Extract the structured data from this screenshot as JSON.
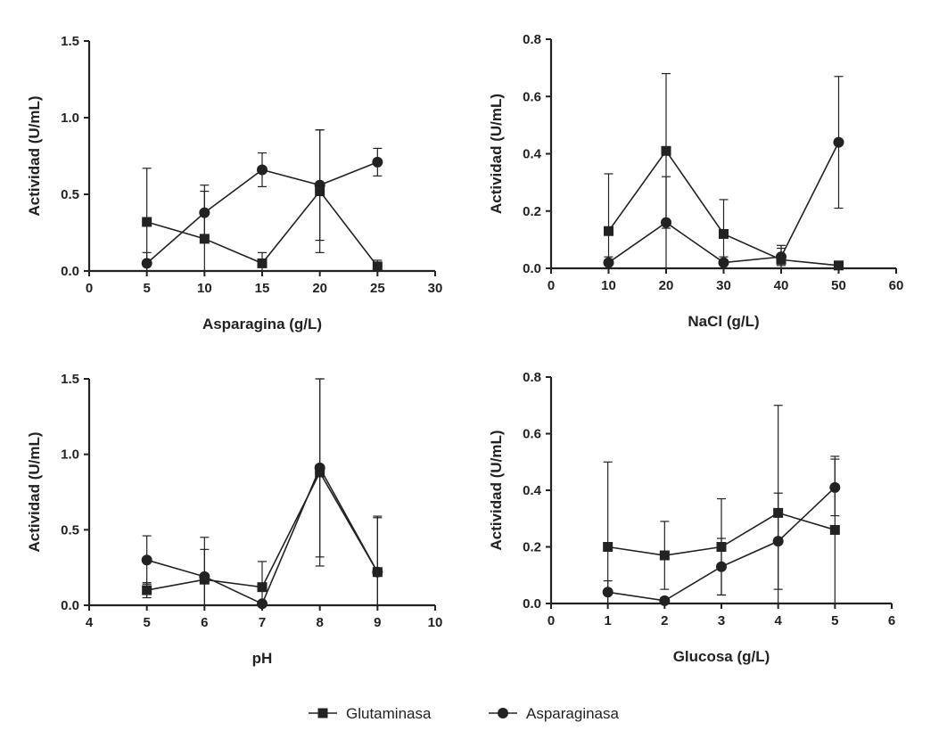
{
  "colors": {
    "ink": "#222222",
    "background": "#ffffff"
  },
  "legend": {
    "placement": "bottom-center",
    "items": [
      {
        "name": "Glutaminasa",
        "marker": "square"
      },
      {
        "name": "Asparaginasa",
        "marker": "circle"
      }
    ]
  },
  "chart_data": [
    {
      "type": "line",
      "xlabel": "Asparagina (g/L)",
      "ylabel": "Actividad (U/mL)",
      "xlim": [
        0,
        30
      ],
      "ylim": [
        0,
        1.5
      ],
      "xticks": [
        "0",
        "5",
        "10",
        "15",
        "20",
        "25",
        "30"
      ],
      "yticks": [
        "0.0",
        "0.5",
        "1.0",
        "1.5"
      ],
      "grid": false,
      "series": [
        {
          "name": "Glutaminasa",
          "marker": "square",
          "x": [
            5,
            10,
            15,
            20,
            25
          ],
          "y": [
            0.32,
            0.21,
            0.05,
            0.52,
            0.03
          ],
          "err": [
            0.35,
            0.31,
            0.07,
            0.4,
            0.04
          ]
        },
        {
          "name": "Asparaginasa",
          "marker": "circle",
          "x": [
            5,
            10,
            15,
            20,
            25
          ],
          "y": [
            0.05,
            0.38,
            0.66,
            0.56,
            0.71
          ],
          "err": [
            0.07,
            0.18,
            0.11,
            0.36,
            0.09
          ]
        }
      ]
    },
    {
      "type": "line",
      "xlabel": "NaCl (g/L)",
      "ylabel": "Actividad (U/mL)",
      "xlim": [
        0,
        60
      ],
      "ylim": [
        0,
        0.8
      ],
      "xticks": [
        "0",
        "10",
        "20",
        "30",
        "40",
        "50",
        "60"
      ],
      "yticks": [
        "0.0",
        "0.2",
        "0.4",
        "0.6",
        "0.8"
      ],
      "grid": false,
      "series": [
        {
          "name": "Glutaminasa",
          "marker": "square",
          "x": [
            10,
            20,
            30,
            40,
            50
          ],
          "y": [
            0.13,
            0.41,
            0.12,
            0.03,
            0.01
          ],
          "err": [
            0.2,
            0.27,
            0.12,
            0.05,
            0.01
          ]
        },
        {
          "name": "Asparaginasa",
          "marker": "circle",
          "x": [
            10,
            20,
            30,
            40,
            50
          ],
          "y": [
            0.02,
            0.16,
            0.02,
            0.04,
            0.44
          ],
          "err": [
            0.02,
            0.16,
            0.02,
            0.03,
            0.23
          ]
        }
      ]
    },
    {
      "type": "line",
      "xlabel": "pH",
      "ylabel": "Actividad (U/mL)",
      "xlim": [
        4,
        10
      ],
      "ylim": [
        0,
        1.5
      ],
      "xticks": [
        "4",
        "5",
        "6",
        "7",
        "8",
        "9",
        "10"
      ],
      "yticks": [
        "0.0",
        "0.5",
        "1.0",
        "1.5"
      ],
      "grid": false,
      "series": [
        {
          "name": "Glutaminasa",
          "marker": "square",
          "x": [
            5,
            6,
            7,
            8,
            9
          ],
          "y": [
            0.1,
            0.17,
            0.12,
            0.88,
            0.22
          ],
          "err": [
            0.05,
            0.2,
            0.17,
            0.62,
            0.37
          ]
        },
        {
          "name": "Asparaginasa",
          "marker": "circle",
          "x": [
            5,
            6,
            7,
            8,
            9
          ],
          "y": [
            0.3,
            0.19,
            0.01,
            0.91,
            0.22
          ],
          "err": [
            0.16,
            0.26,
            0.01,
            0.59,
            0.36
          ]
        }
      ]
    },
    {
      "type": "line",
      "xlabel": "Glucosa (g/L)",
      "ylabel": "Actividad (U/mL)",
      "xlim": [
        0,
        6
      ],
      "ylim": [
        0,
        0.8
      ],
      "xticks": [
        "0",
        "1",
        "2",
        "3",
        "4",
        "5",
        "6"
      ],
      "yticks": [
        "0.0",
        "0.2",
        "0.4",
        "0.6",
        "0.8"
      ],
      "grid": false,
      "series": [
        {
          "name": "Glutaminasa",
          "marker": "square",
          "x": [
            1,
            2,
            3,
            4,
            5
          ],
          "y": [
            0.2,
            0.17,
            0.2,
            0.32,
            0.26
          ],
          "err": [
            0.3,
            0.12,
            0.17,
            0.38,
            0.26
          ]
        },
        {
          "name": "Asparaginasa",
          "marker": "circle",
          "x": [
            1,
            2,
            3,
            4,
            5
          ],
          "y": [
            0.04,
            0.01,
            0.13,
            0.22,
            0.41
          ],
          "err": [
            0.04,
            0.01,
            0.1,
            0.17,
            0.1
          ]
        }
      ]
    }
  ]
}
